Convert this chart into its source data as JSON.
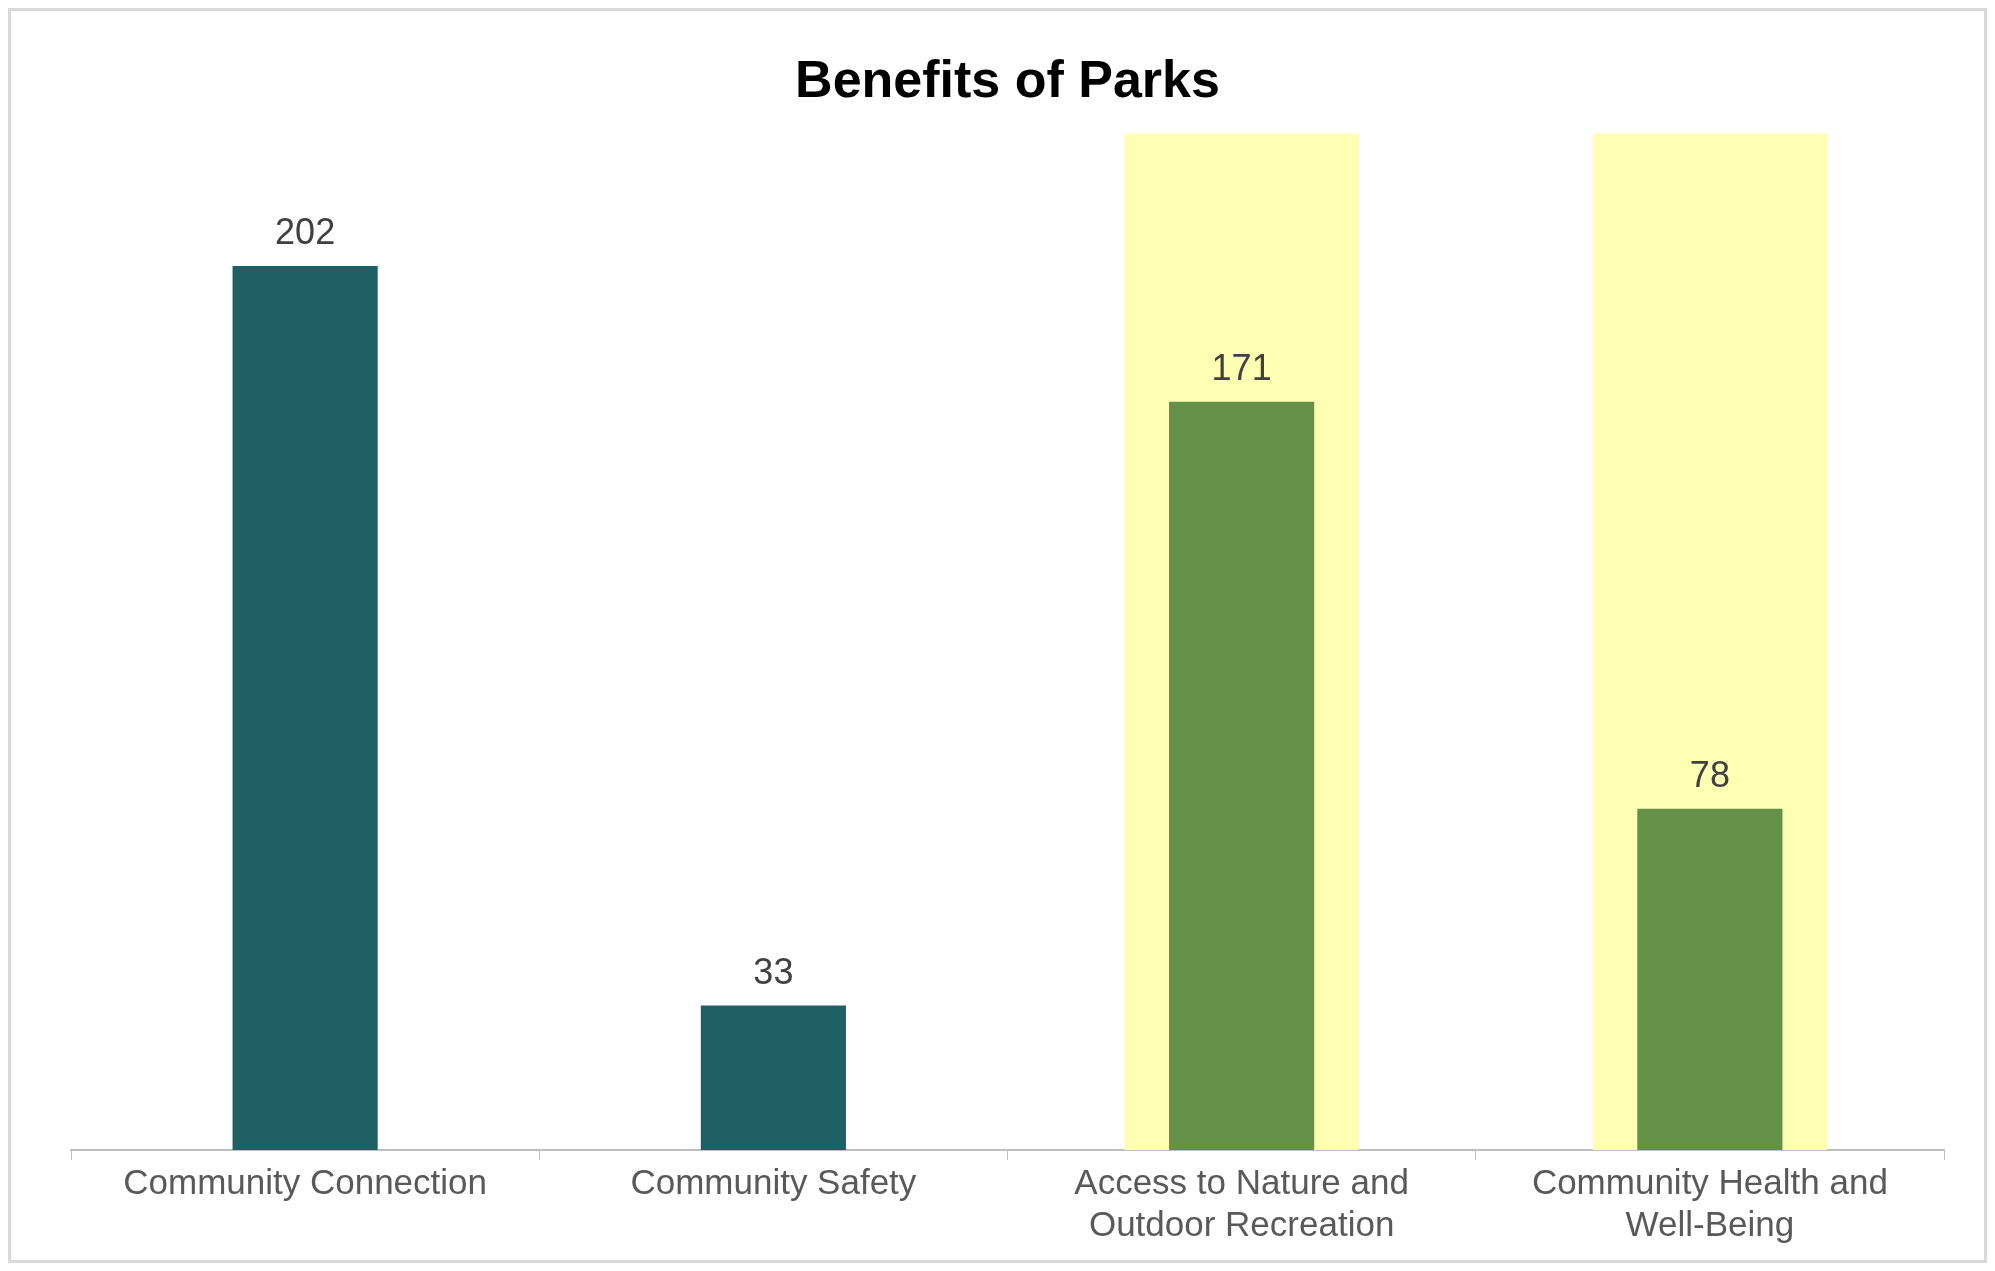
{
  "chart_data": {
    "type": "bar",
    "title": "Benefits of Parks",
    "categories": [
      "Community Connection",
      "Community Safety",
      "Access to Nature and Outdoor Recreation",
      "Community Health and Well-Being"
    ],
    "values": [
      202,
      33,
      171,
      78
    ],
    "colors": [
      "#1f6065",
      "#1f6065",
      "#629147",
      "#629147"
    ],
    "data_labels": true,
    "grid": false,
    "legend": false,
    "bands": [
      {
        "axis": "x",
        "from": "Access to Nature and Outdoor Recreation",
        "to": "Access to Nature and Outdoor Recreation",
        "color": "#ffffb3"
      },
      {
        "axis": "x",
        "from": "Community Health and Well-Being",
        "to": "Community Health and Well-Being",
        "color": "#ffffb3"
      }
    ]
  }
}
